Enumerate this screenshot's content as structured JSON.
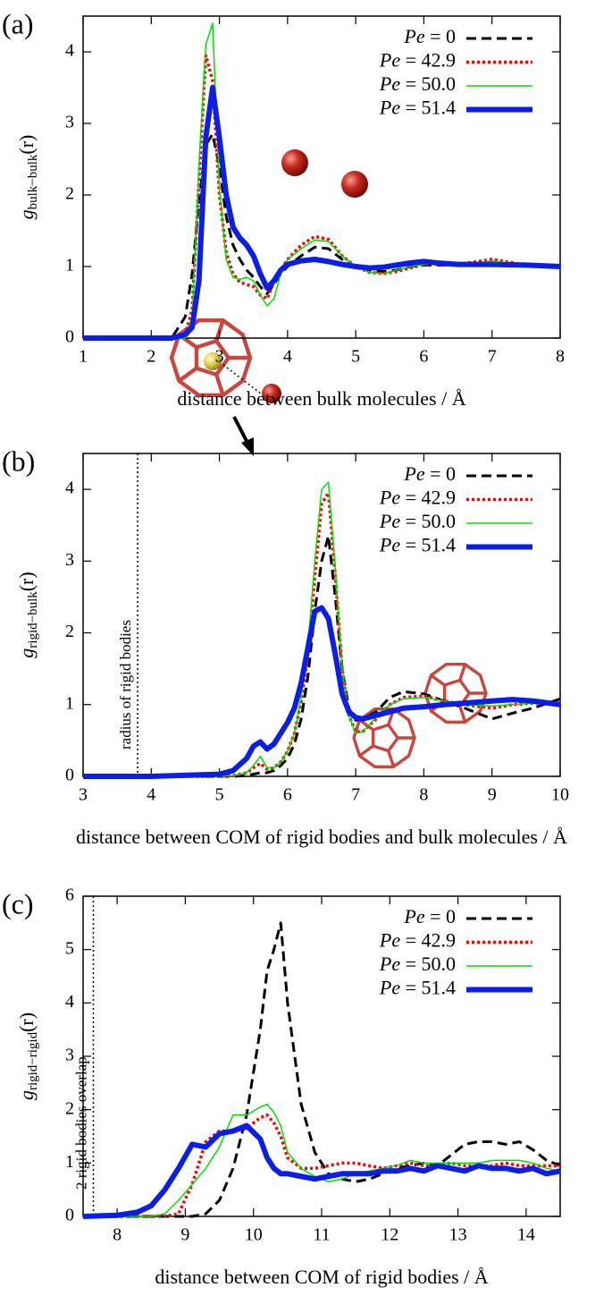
{
  "chart_data": [
    {
      "type": "line",
      "panel_label": "(a)",
      "xlabel": "distance between bulk molecules / Å",
      "ylabel": {
        "symbol": "g",
        "subscript": "bulk−bulk",
        "argument": "(r)"
      },
      "xlim": [
        1,
        8
      ],
      "ylim": [
        0,
        4.5
      ],
      "xticks": [
        1,
        2,
        3,
        4,
        5,
        6,
        7,
        8
      ],
      "yticks": [
        0,
        1,
        2,
        3,
        4
      ],
      "legend": "top-right",
      "x": [
        1,
        2,
        2.3,
        2.5,
        2.6,
        2.7,
        2.8,
        2.9,
        3.0,
        3.1,
        3.2,
        3.3,
        3.4,
        3.5,
        3.6,
        3.7,
        3.8,
        3.9,
        4.0,
        4.2,
        4.4,
        4.6,
        4.8,
        5.0,
        5.2,
        5.4,
        5.6,
        5.8,
        6.0,
        6.2,
        6.5,
        7.0,
        7.5,
        8.0
      ],
      "series": [
        {
          "name": "Pe = 0",
          "color": "#000000",
          "line_style": "dashed",
          "line_width": 3,
          "values": [
            0,
            0,
            0,
            0.3,
            0.9,
            1.9,
            2.7,
            2.85,
            2.4,
            1.7,
            1.3,
            1.1,
            0.95,
            0.85,
            0.72,
            0.62,
            0.75,
            0.9,
            1.0,
            1.15,
            1.27,
            1.25,
            1.1,
            1.0,
            0.95,
            0.93,
            0.95,
            1.0,
            1.02,
            1.02,
            1.02,
            1.05,
            1.02,
            1.0
          ]
        },
        {
          "name": "Pe = 42.9",
          "color": "#ff0000",
          "line_style": "dotted",
          "line_width": 3.5,
          "values": [
            0,
            0,
            0,
            0.05,
            0.4,
            2.2,
            3.95,
            3.6,
            2.0,
            1.2,
            0.9,
            0.78,
            0.75,
            0.72,
            0.6,
            0.55,
            0.78,
            0.95,
            1.1,
            1.3,
            1.42,
            1.38,
            1.15,
            1.0,
            0.92,
            0.9,
            0.93,
            0.98,
            1.03,
            1.05,
            1.03,
            1.1,
            1.02,
            1.0
          ]
        },
        {
          "name": "Pe = 50.0",
          "color": "#00e000",
          "line_style": "solid",
          "line_width": 1.5,
          "values": [
            0,
            0,
            0,
            0,
            0.3,
            2.4,
            4.1,
            4.4,
            2.1,
            1.1,
            0.85,
            0.82,
            0.85,
            0.8,
            0.6,
            0.45,
            0.55,
            0.9,
            1.1,
            1.25,
            1.37,
            1.35,
            1.15,
            1.0,
            0.92,
            0.9,
            0.95,
            1.0,
            1.03,
            1.04,
            1.02,
            1.08,
            1.02,
            1.0
          ]
        },
        {
          "name": "Pe = 51.4",
          "color": "#0a1ee8",
          "line_style": "solid",
          "line_width": 6,
          "values": [
            0,
            0,
            0,
            0.05,
            0.15,
            0.8,
            2.8,
            3.5,
            2.8,
            2.0,
            1.55,
            1.4,
            1.3,
            1.15,
            0.9,
            0.7,
            0.8,
            0.95,
            1.03,
            1.08,
            1.1,
            1.07,
            1.03,
            1.0,
            0.98,
            0.99,
            1.02,
            1.05,
            1.07,
            1.05,
            1.03,
            1.03,
            1.02,
            1.0
          ]
        }
      ]
    },
    {
      "type": "line",
      "panel_label": "(b)",
      "xlabel": "distance between COM of rigid bodies and bulk molecules / Å",
      "ylabel": {
        "symbol": "g",
        "subscript": "rigid−bulk",
        "argument": "(r)"
      },
      "xlim": [
        3,
        10
      ],
      "ylim": [
        0,
        4.5
      ],
      "xticks": [
        3,
        4,
        5,
        6,
        7,
        8,
        9,
        10
      ],
      "yticks": [
        0,
        1,
        2,
        3,
        4
      ],
      "legend": "top-right",
      "vlines": [
        {
          "x": 3.8,
          "label": "radius of rigid bodies"
        }
      ],
      "x": [
        3,
        4,
        5,
        5.2,
        5.4,
        5.5,
        5.6,
        5.7,
        5.8,
        5.9,
        6.0,
        6.1,
        6.2,
        6.3,
        6.4,
        6.5,
        6.6,
        6.7,
        6.8,
        6.9,
        7.0,
        7.1,
        7.3,
        7.5,
        7.7,
        8.0,
        8.3,
        8.6,
        9.0,
        9.3,
        9.6,
        10
      ],
      "series": [
        {
          "name": "Pe = 0",
          "color": "#000000",
          "line_style": "dashed",
          "line_width": 3,
          "values": [
            0,
            0,
            0,
            0,
            0.01,
            0.03,
            0.05,
            0.05,
            0.08,
            0.15,
            0.25,
            0.45,
            0.8,
            1.4,
            2.3,
            3.0,
            3.35,
            2.5,
            1.5,
            0.95,
            0.78,
            0.8,
            0.9,
            1.1,
            1.18,
            1.15,
            1.05,
            0.95,
            0.8,
            0.88,
            0.95,
            1.08
          ]
        },
        {
          "name": "Pe = 42.9",
          "color": "#ff0000",
          "line_style": "dotted",
          "line_width": 3.5,
          "values": [
            0,
            0,
            0,
            0.01,
            0.05,
            0.12,
            0.18,
            0.1,
            0.12,
            0.2,
            0.35,
            0.6,
            1.05,
            1.7,
            2.8,
            3.8,
            3.95,
            2.8,
            1.5,
            0.85,
            0.62,
            0.62,
            0.8,
            1.0,
            1.1,
            1.12,
            1.05,
            1.0,
            0.95,
            1.0,
            1.02,
            1.02
          ]
        },
        {
          "name": "Pe = 50.0",
          "color": "#00e000",
          "line_style": "solid",
          "line_width": 1.5,
          "values": [
            0,
            0,
            0,
            0.01,
            0.05,
            0.15,
            0.28,
            0.12,
            0.12,
            0.2,
            0.35,
            0.6,
            1.1,
            1.8,
            3.0,
            4.0,
            4.1,
            2.9,
            1.5,
            0.85,
            0.6,
            0.62,
            0.82,
            1.0,
            1.08,
            1.1,
            1.05,
            1.0,
            0.98,
            1.0,
            1.02,
            1.02
          ]
        },
        {
          "name": "Pe = 51.4",
          "color": "#0a1ee8",
          "line_style": "solid",
          "line_width": 6,
          "values": [
            0,
            0,
            0.03,
            0.08,
            0.25,
            0.42,
            0.48,
            0.38,
            0.45,
            0.6,
            0.75,
            0.95,
            1.3,
            1.8,
            2.3,
            2.35,
            2.2,
            1.7,
            1.15,
            0.9,
            0.82,
            0.8,
            0.85,
            0.9,
            0.95,
            0.97,
            1.0,
            1.02,
            1.05,
            1.07,
            1.05,
            1.0
          ]
        }
      ]
    },
    {
      "type": "line",
      "panel_label": "(c)",
      "xlabel": "distance between COM of rigid bodies / Å",
      "ylabel": {
        "symbol": "g",
        "subscript": "rigid−rigid",
        "argument": "(r)"
      },
      "xlim": [
        7.5,
        14.5
      ],
      "ylim": [
        0,
        6
      ],
      "xticks": [
        8,
        9,
        10,
        11,
        12,
        13,
        14
      ],
      "yticks": [
        0,
        1,
        2,
        3,
        4,
        5,
        6
      ],
      "legend": "top-right",
      "vlines": [
        {
          "x": 7.65,
          "label": "2 rigid bodies overlap"
        }
      ],
      "x": [
        7.5,
        8,
        8.3,
        8.5,
        8.7,
        8.9,
        9.1,
        9.3,
        9.5,
        9.7,
        9.9,
        10.1,
        10.2,
        10.3,
        10.4,
        10.5,
        10.7,
        10.9,
        11.1,
        11.3,
        11.5,
        11.7,
        11.9,
        12.1,
        12.3,
        12.5,
        12.7,
        12.9,
        13.1,
        13.3,
        13.5,
        13.7,
        13.9,
        14.1,
        14.3,
        14.5
      ],
      "series": [
        {
          "name": "Pe = 0",
          "color": "#000000",
          "line_style": "dashed",
          "line_width": 3,
          "values": [
            0,
            0,
            0,
            0,
            0,
            0,
            0,
            0.05,
            0.3,
            0.9,
            1.9,
            3.5,
            4.6,
            5.0,
            5.5,
            4.0,
            2.1,
            1.2,
            0.8,
            0.7,
            0.65,
            0.7,
            0.8,
            0.9,
            0.95,
            1.0,
            0.95,
            1.15,
            1.35,
            1.4,
            1.4,
            1.35,
            1.4,
            1.25,
            1.05,
            0.95
          ]
        },
        {
          "name": "Pe = 42.9",
          "color": "#ff0000",
          "line_style": "dotted",
          "line_width": 3.5,
          "values": [
            0,
            0,
            0,
            0,
            0,
            0.05,
            0.6,
            1.4,
            1.6,
            1.6,
            1.65,
            1.85,
            1.9,
            1.75,
            1.5,
            1.1,
            0.9,
            0.9,
            0.95,
            1.0,
            1.0,
            0.95,
            0.9,
            0.95,
            1.0,
            0.95,
            0.95,
            1.0,
            0.95,
            0.95,
            0.95,
            1.0,
            0.95,
            0.95,
            0.95,
            0.95
          ]
        },
        {
          "name": "Pe = 50.0",
          "color": "#00e000",
          "line_style": "solid",
          "line_width": 1.5,
          "values": [
            0,
            0,
            0,
            0,
            0.05,
            0.3,
            0.6,
            0.9,
            1.3,
            1.9,
            1.9,
            2.05,
            2.1,
            1.95,
            1.7,
            1.2,
            0.9,
            0.75,
            0.65,
            0.7,
            0.8,
            0.85,
            0.9,
            0.95,
            1.05,
            1.0,
            1.0,
            1.0,
            1.0,
            1.0,
            1.05,
            1.05,
            1.05,
            1.0,
            0.9,
            0.85
          ]
        },
        {
          "name": "Pe = 51.4",
          "color": "#0a1ee8",
          "line_style": "solid",
          "line_width": 6,
          "values": [
            0,
            0.02,
            0.08,
            0.2,
            0.5,
            0.9,
            1.35,
            1.3,
            1.55,
            1.6,
            1.7,
            1.45,
            1.1,
            0.9,
            0.8,
            0.8,
            0.75,
            0.7,
            0.75,
            0.8,
            0.8,
            0.8,
            0.85,
            0.85,
            0.9,
            0.85,
            0.95,
            0.9,
            0.85,
            0.95,
            0.9,
            0.9,
            0.85,
            0.9,
            0.8,
            0.85
          ]
        }
      ]
    }
  ]
}
